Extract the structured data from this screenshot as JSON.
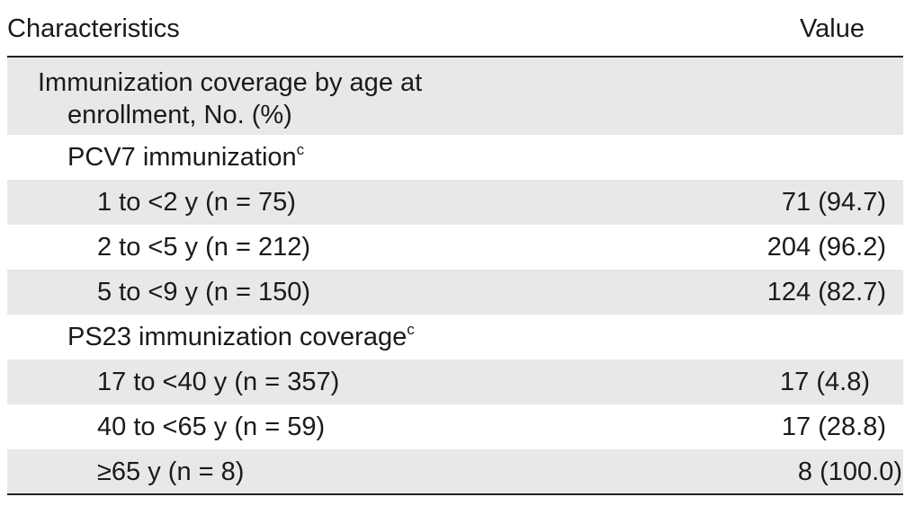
{
  "table": {
    "header": [
      "Characteristics",
      "Value"
    ],
    "rows": [
      {
        "label": "Immunization coverage by age at enrollment, No. (%)"
      },
      {
        "label": "PCV7 immunization",
        "note": "c"
      },
      {
        "label": "1 to <2 y (n = 75)",
        "value": "71 (94.7)"
      },
      {
        "label": "2 to <5 y (n = 212)",
        "value": "204 (96.2)"
      },
      {
        "label": "5 to <9 y (n = 150)",
        "value": "124 (82.7)"
      },
      {
        "label": "PS23 immunization coverage",
        "note": "c"
      },
      {
        "label": "17 to <40 y (n = 357)",
        "value": "17 (4.8)"
      },
      {
        "label": "40 to <65 y (n = 59)",
        "value": "17 (28.8)"
      },
      {
        "label": "≥65 y (n = 8)",
        "value": "8 (100.0)"
      }
    ]
  }
}
